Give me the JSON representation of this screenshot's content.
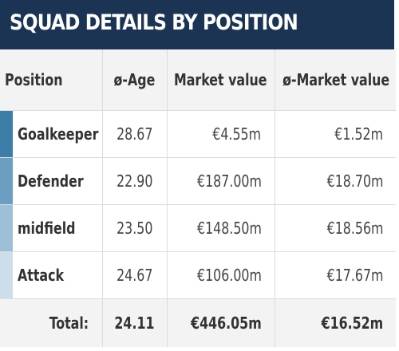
{
  "header": {
    "title": "SQUAD DETAILS BY POSITION"
  },
  "table": {
    "columns": [
      "Position",
      "ø-Age",
      "Market value",
      "ø-Market value"
    ],
    "rows": [
      {
        "position": "Goalkeeper",
        "avg_age": "28.67",
        "market_value": "€4.55m",
        "avg_market_value": "€1.52m",
        "bar_color": "#3d7ea8"
      },
      {
        "position": "Defender",
        "avg_age": "22.90",
        "market_value": "€187.00m",
        "avg_market_value": "€18.70m",
        "bar_color": "#6b9fc2"
      },
      {
        "position": "midfield",
        "avg_age": "23.50",
        "market_value": "€148.50m",
        "avg_market_value": "€18.56m",
        "bar_color": "#9dc0d8"
      },
      {
        "position": "Attack",
        "avg_age": "24.67",
        "market_value": "€106.00m",
        "avg_market_value": "€17.67m",
        "bar_color": "#ccdeea"
      }
    ],
    "total": {
      "label": "Total:",
      "avg_age": "24.11",
      "market_value": "€446.05m",
      "avg_market_value": "€16.52m"
    }
  },
  "colors": {
    "header_bg": "#1c3454",
    "header_text": "#ffffff",
    "row_alt_bg": "#f3f3f3",
    "border": "#dcdcdc"
  }
}
